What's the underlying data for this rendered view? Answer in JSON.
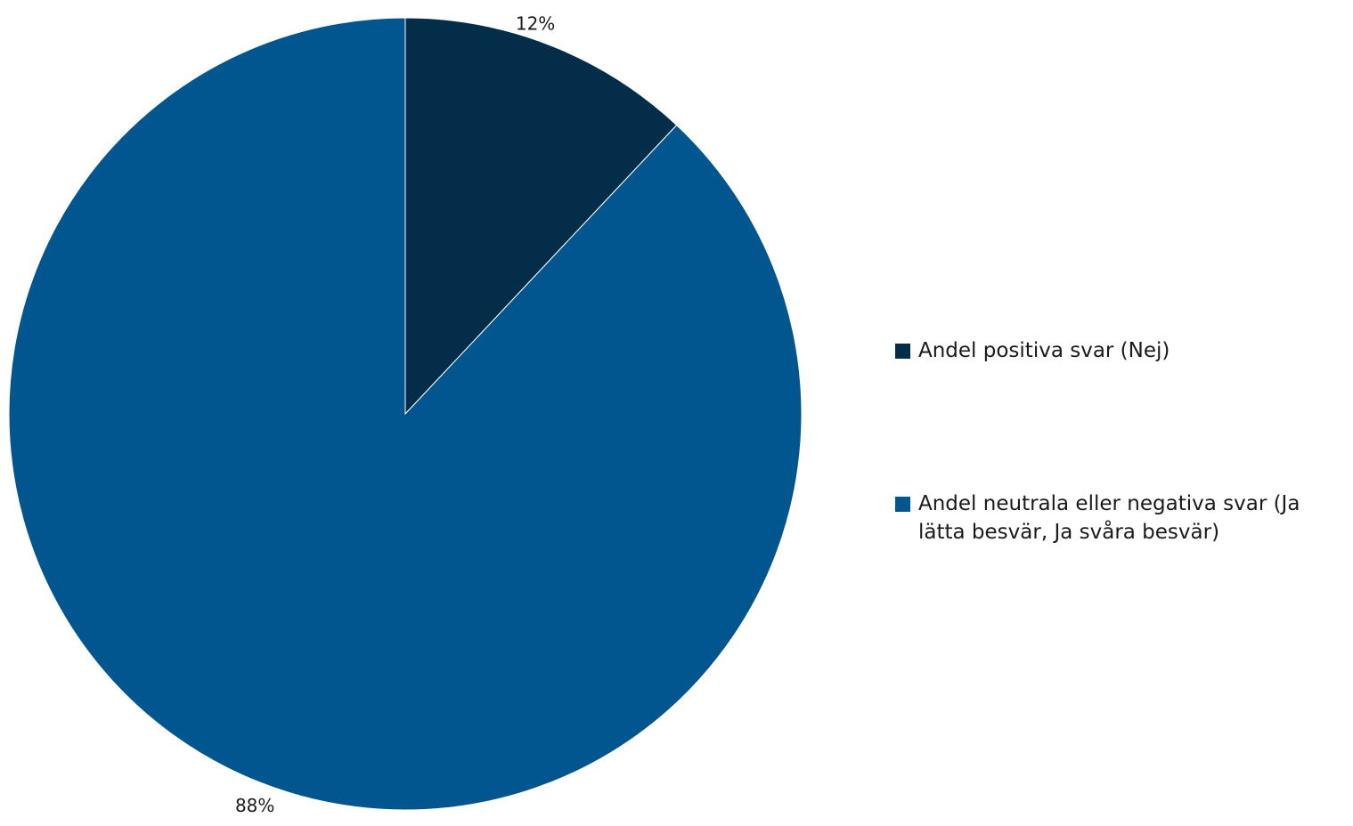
{
  "chart_data": {
    "type": "pie",
    "title": "",
    "slices": [
      {
        "label": "Andel positiva svar (Nej)",
        "value": 12,
        "value_label": "12%",
        "color": "#032d48"
      },
      {
        "label": "Andel neutrala eller negativa svar (Ja lätta besvär, Ja svåra besvär)",
        "value": 88,
        "value_label": "88%",
        "color": "#02568f"
      }
    ],
    "legend_position": "right",
    "start": "12 o'clock, clockwise"
  }
}
